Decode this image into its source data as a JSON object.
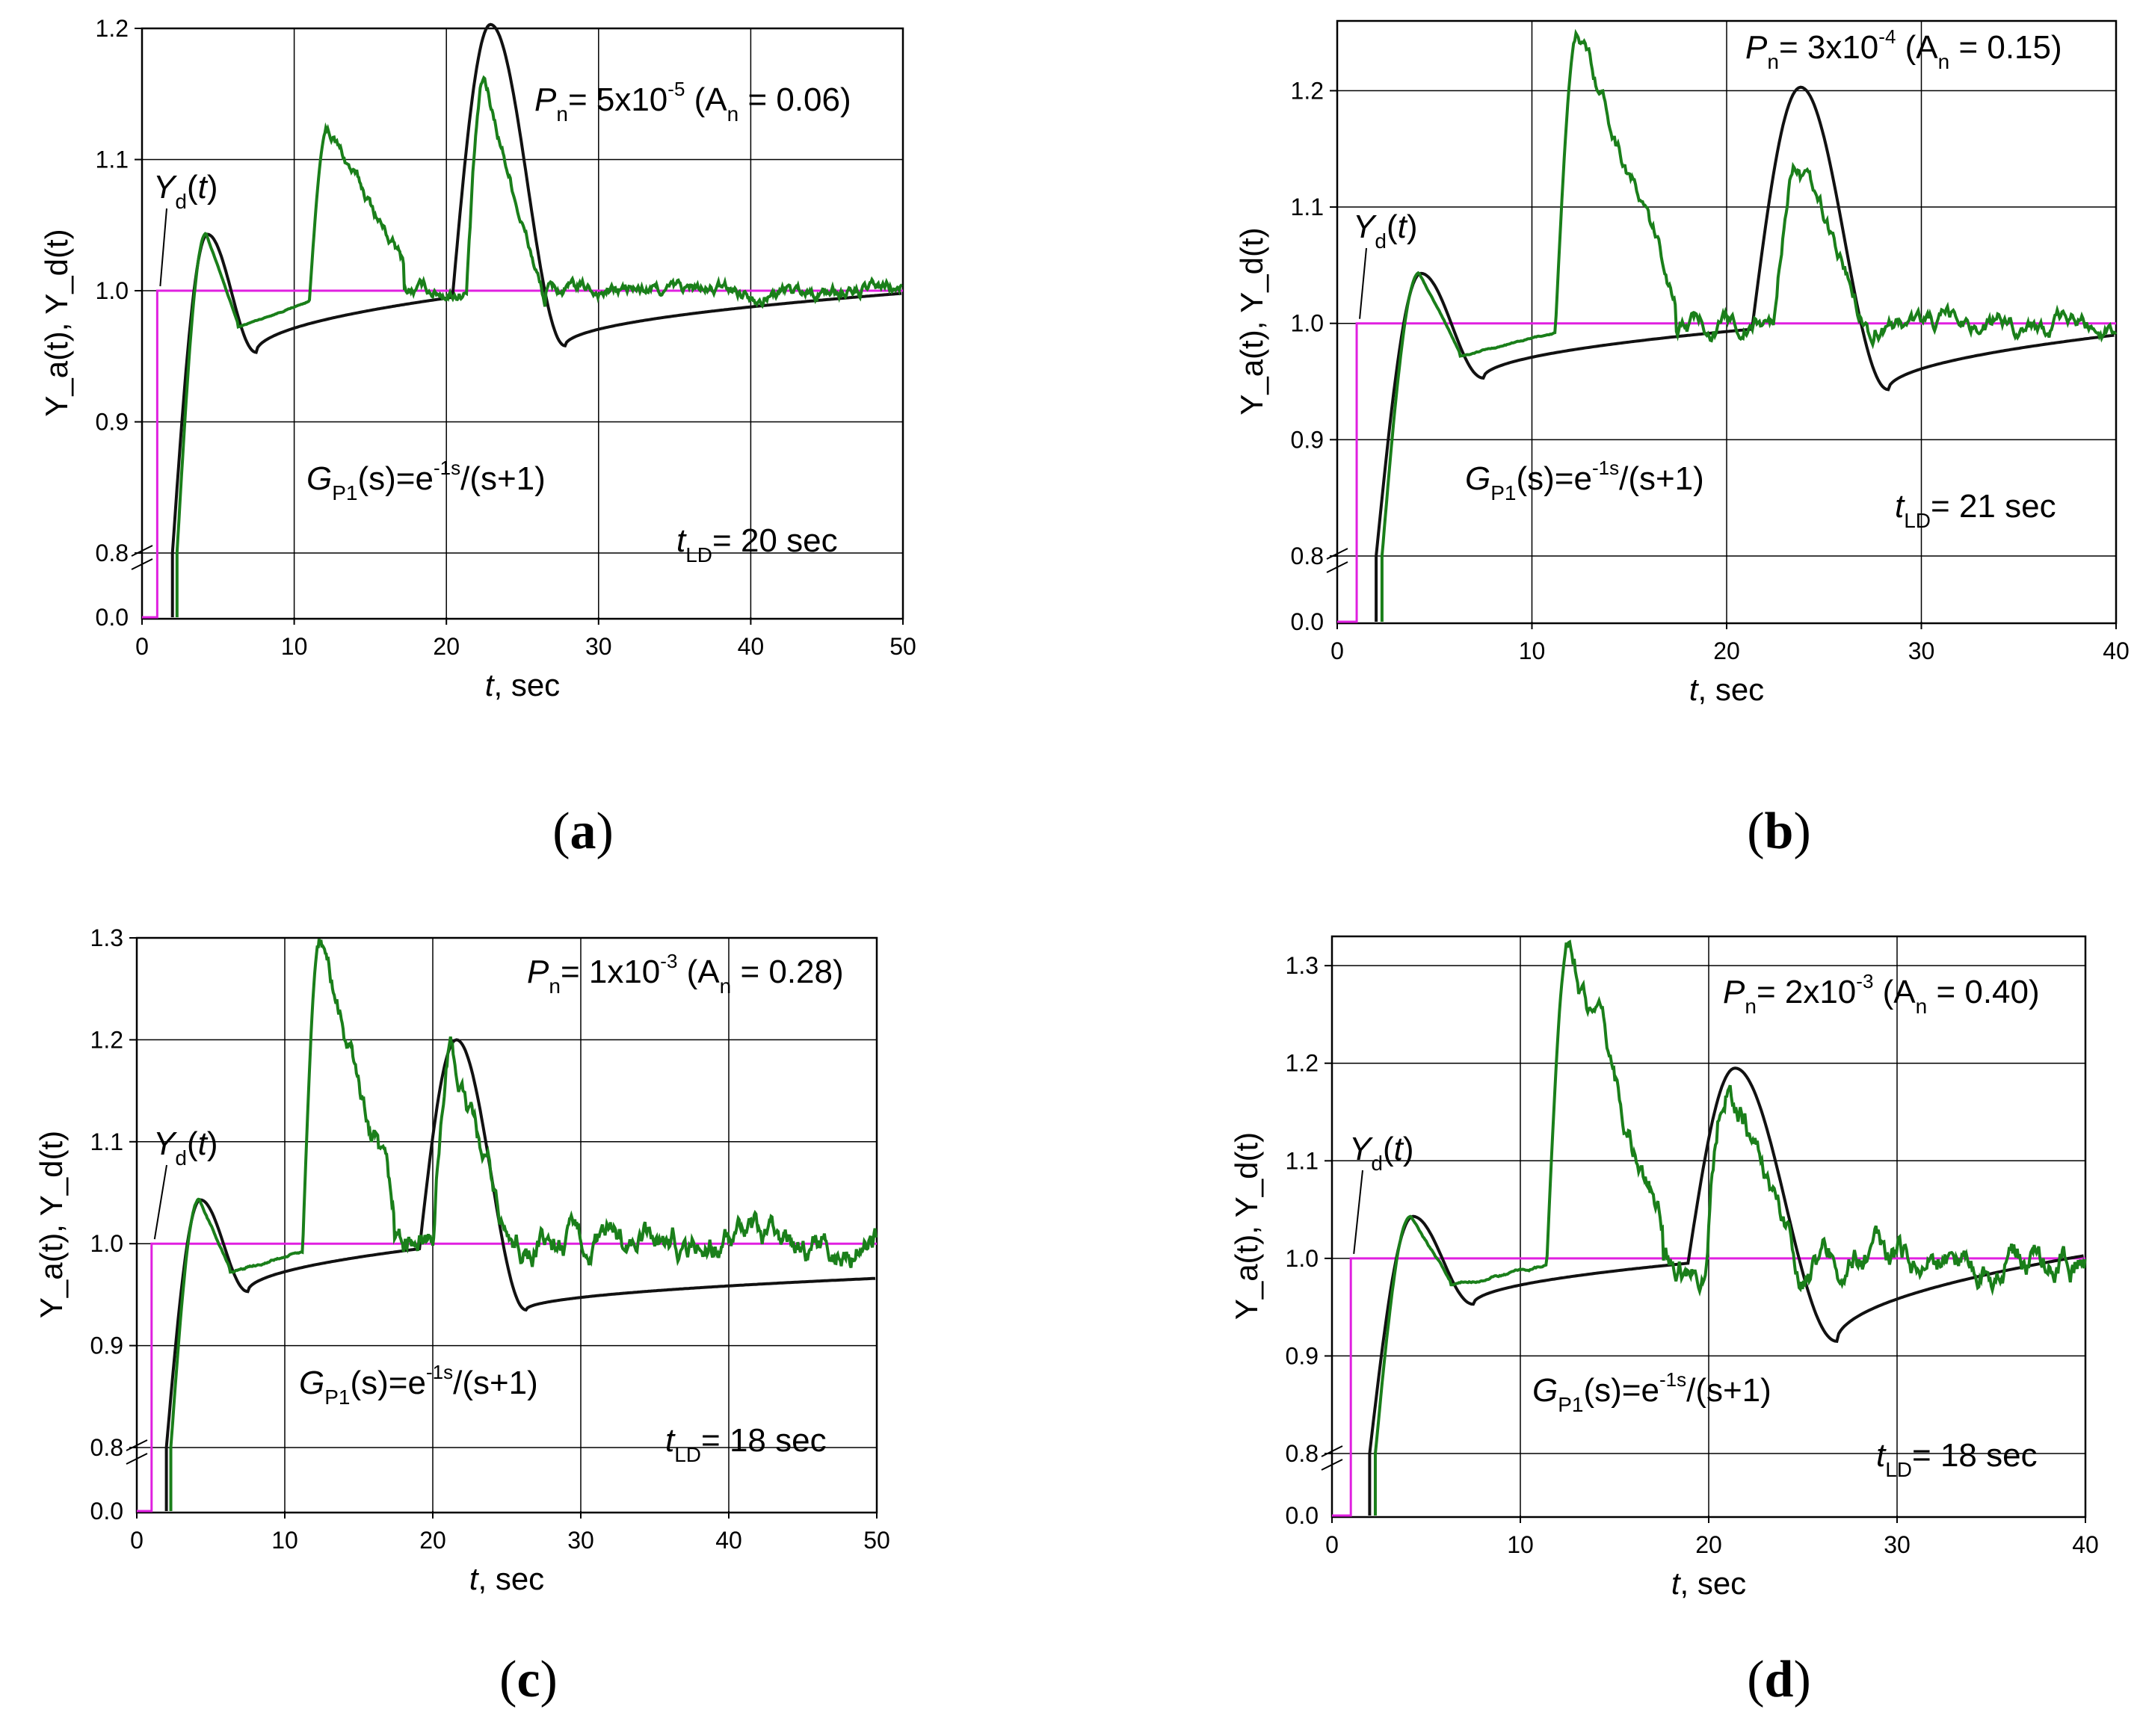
{
  "figure": {
    "colors": {
      "actual": "#1a7f1a",
      "model": "#111111",
      "setpoint": "#e020e0",
      "grid": "#000000"
    },
    "x_axis_label": "sec",
    "x_axis_symbol": "t",
    "y_axis_label": "Y_a(t),  Y_d(t)",
    "yd_label": "Y_d(t)"
  },
  "chart_data": [
    {
      "id": "a",
      "type": "line",
      "caption": "(a)",
      "title": "",
      "xlabel": "t, sec",
      "ylabel": "Y_a(t), Y_d(t)",
      "xlim": [
        0,
        50
      ],
      "ylim_upper": [
        0.8,
        1.2
      ],
      "ylim_lower_break": [
        0.0,
        0.0
      ],
      "x_ticks": [
        0,
        10,
        20,
        30,
        40,
        50
      ],
      "y_ticks": [
        0.8,
        0.9,
        1.0,
        1.1,
        1.2
      ],
      "y_tick_labels": [
        "0.8",
        "0.9",
        "1.0",
        "1.1",
        "1.2"
      ],
      "y_break_label": "0.0",
      "pn_label": {
        "symbol": "P",
        "sub": "n",
        "text": "= 5x10",
        "exp": "-5",
        "an_text": "(A",
        "an_sub": "n",
        "an_value": "= 0.06)"
      },
      "transfer_function": {
        "symbol": "G",
        "sub": "P1",
        "text": "(s)=e",
        "exp": "-1s",
        "tail": "/(s+1)"
      },
      "tld_label": {
        "symbol": "t",
        "sub": "LD",
        "text": "= 20 sec"
      },
      "setpoint": {
        "step_time": 1.0,
        "value": 1.0
      },
      "series": [
        {
          "name": "Y_d(t) model",
          "color": "model",
          "peak1": {
            "t": 4.3,
            "y": 1.043
          },
          "dip1": {
            "t": 7.5,
            "y": 0.953
          },
          "peak2": {
            "t": 22.9,
            "y": 1.203
          },
          "dip2": {
            "t": 27.8,
            "y": 0.958
          },
          "end": {
            "t": 50,
            "y": 0.998
          }
        },
        {
          "name": "Y_a(t) actual",
          "color": "actual",
          "peak1": {
            "t": 4.2,
            "y": 1.044
          },
          "bump": {
            "t": 12.2,
            "y": 1.124
          },
          "peak2": {
            "t": 22.5,
            "y": 1.158
          },
          "end": {
            "t": 50,
            "y": 1.01
          }
        }
      ]
    },
    {
      "id": "b",
      "type": "line",
      "caption": "(b)",
      "title": "",
      "xlabel": "t, sec",
      "ylabel": "Y_a(t), Y_d(t)",
      "xlim": [
        0,
        40
      ],
      "ylim_upper": [
        0.8,
        1.26
      ],
      "x_ticks": [
        0,
        10,
        20,
        30,
        40
      ],
      "y_ticks": [
        0.8,
        0.9,
        1.0,
        1.1,
        1.2
      ],
      "y_tick_labels": [
        "0.8",
        "0.9",
        "1.0",
        "1.1",
        "1.2"
      ],
      "y_break_label": "0.0",
      "pn_label": {
        "symbol": "P",
        "sub": "n",
        "text": "= 3x10",
        "exp": "-4",
        "an_text": "(A",
        "an_sub": "n",
        "an_value": "= 0.15)"
      },
      "transfer_function": {
        "symbol": "G",
        "sub": "P1",
        "text": "(s)=e",
        "exp": "-1s",
        "tail": "/(s+1)"
      },
      "tld_label": {
        "symbol": "t",
        "sub": "LD",
        "text": "= 21 sec"
      },
      "setpoint": {
        "step_time": 1.0,
        "value": 1.0
      },
      "series": [
        {
          "name": "Y_d(t) model",
          "color": "model",
          "peak1": {
            "t": 4.3,
            "y": 1.043
          },
          "dip1": {
            "t": 7.5,
            "y": 0.953
          },
          "peak2": {
            "t": 23.8,
            "y": 1.203
          },
          "dip2": {
            "t": 28.3,
            "y": 0.943
          },
          "end": {
            "t": 40,
            "y": 0.99
          }
        },
        {
          "name": "Y_a(t) actual",
          "color": "actual",
          "peak1": {
            "t": 4.2,
            "y": 1.044
          },
          "bump": {
            "t": 12.4,
            "y": 1.255
          },
          "peak2": {
            "t": 23.6,
            "y": 1.14
          },
          "end": {
            "t": 40,
            "y": 1.0
          }
        }
      ]
    },
    {
      "id": "c",
      "type": "line",
      "caption": "(c)",
      "title": "",
      "xlabel": "t, sec",
      "ylabel": "Y_a(t), Y_d(t)",
      "xlim": [
        0,
        50
      ],
      "ylim_upper": [
        0.8,
        1.3
      ],
      "x_ticks": [
        0,
        10,
        20,
        30,
        40,
        50
      ],
      "y_ticks": [
        0.8,
        0.9,
        1.0,
        1.1,
        1.2,
        1.3
      ],
      "y_tick_labels": [
        "0.8",
        "0.9",
        "1.0",
        "1.1",
        "1.2",
        "1.3"
      ],
      "y_break_label": "0.0",
      "pn_label": {
        "symbol": "P",
        "sub": "n",
        "text": "= 1x10",
        "exp": "-3",
        "an_text": "(A",
        "an_sub": "n",
        "an_value": "= 0.28)"
      },
      "transfer_function": {
        "symbol": "G",
        "sub": "P1",
        "text": "(s)=e",
        "exp": "-1s",
        "tail": "/(s+1)"
      },
      "tld_label": {
        "symbol": "t",
        "sub": "LD",
        "text": "= 18 sec"
      },
      "setpoint": {
        "step_time": 1.0,
        "value": 1.0
      },
      "series": [
        {
          "name": "Y_d(t) model",
          "color": "model",
          "peak1": {
            "t": 4.3,
            "y": 1.043
          },
          "dip1": {
            "t": 7.5,
            "y": 0.953
          },
          "peak2": {
            "t": 21.6,
            "y": 1.2
          },
          "dip2": {
            "t": 26.3,
            "y": 0.935
          },
          "end": {
            "t": 50,
            "y": 0.966
          }
        },
        {
          "name": "Y_a(t) actual",
          "color": "actual",
          "peak1": {
            "t": 4.2,
            "y": 1.044
          },
          "bump": {
            "t": 12.4,
            "y": 1.3
          },
          "peak2": {
            "t": 21.2,
            "y": 1.19
          },
          "end": {
            "t": 50,
            "y": 0.99
          }
        }
      ]
    },
    {
      "id": "d",
      "type": "line",
      "caption": "(d)",
      "title": "",
      "xlabel": "t, sec",
      "ylabel": "Y_a(t), Y_d(t)",
      "xlim": [
        0,
        40
      ],
      "ylim_upper": [
        0.8,
        1.33
      ],
      "x_ticks": [
        0,
        10,
        20,
        30,
        40
      ],
      "y_ticks": [
        0.8,
        0.9,
        1.0,
        1.1,
        1.2,
        1.3
      ],
      "y_tick_labels": [
        "0.8",
        "0.9",
        "1.0",
        "1.1",
        "1.2",
        "1.3"
      ],
      "y_break_label": "0.0",
      "pn_label": {
        "symbol": "P",
        "sub": "n",
        "text": "= 2x10",
        "exp": "-3",
        "an_text": "(A",
        "an_sub": "n",
        "an_value": "= 0.40)"
      },
      "transfer_function": {
        "symbol": "G",
        "sub": "P1",
        "text": "(s)=e",
        "exp": "-1s",
        "tail": "/(s+1)"
      },
      "tld_label": {
        "symbol": "t",
        "sub": "LD",
        "text": "= 18 sec"
      },
      "setpoint": {
        "step_time": 1.0,
        "value": 1.0
      },
      "series": [
        {
          "name": "Y_d(t) model",
          "color": "model",
          "peak1": {
            "t": 4.3,
            "y": 1.043
          },
          "dip1": {
            "t": 7.5,
            "y": 0.953
          },
          "peak2": {
            "t": 21.4,
            "y": 1.195
          },
          "dip2": {
            "t": 26.8,
            "y": 0.915
          },
          "end": {
            "t": 40,
            "y": 1.003
          }
        },
        {
          "name": "Y_a(t) actual",
          "color": "actual",
          "peak1": {
            "t": 4.2,
            "y": 1.044
          },
          "bump": {
            "t": 12.6,
            "y": 1.325
          },
          "peak2": {
            "t": 21.0,
            "y": 1.19
          },
          "end": {
            "t": 40,
            "y": 1.0
          }
        }
      ]
    }
  ]
}
